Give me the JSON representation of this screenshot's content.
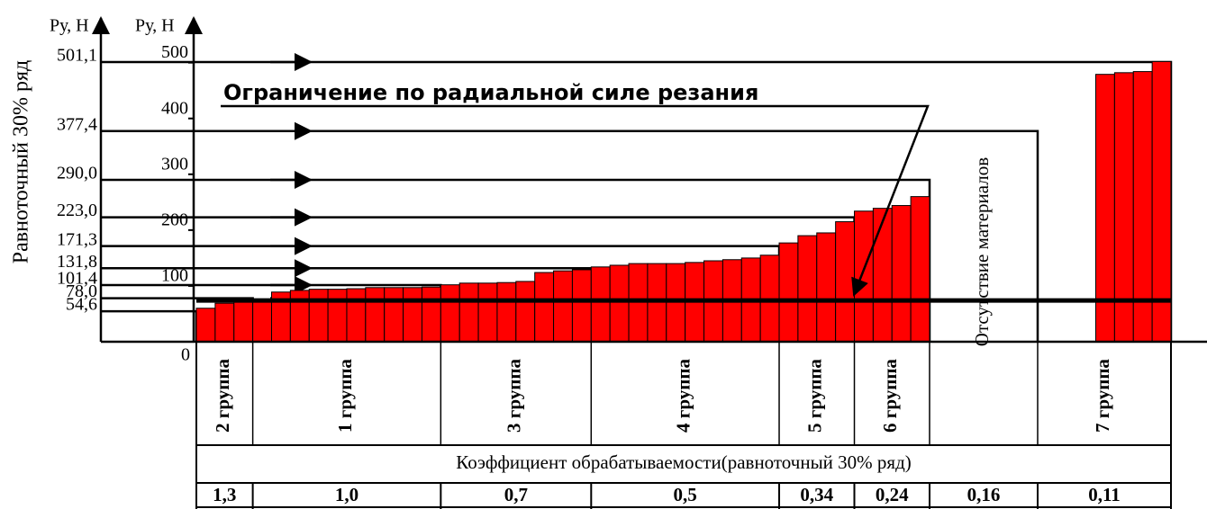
{
  "chart_data": {
    "type": "bar",
    "title": "Ограничение по радиальной силе резания",
    "y_label": "Равноточный 30% ряд",
    "y_unit_outer": "Pу, Н",
    "y_unit_inner": "Pу, Н",
    "color": "#ff0000",
    "ylim": [
      0,
      580
    ],
    "yticks": [
      0,
      100,
      200,
      300,
      400,
      500
    ],
    "row_ticks": [
      {
        "value": 54.6,
        "label": "54,6"
      },
      {
        "value": 78.0,
        "label": "78,0"
      },
      {
        "value": 101.4,
        "label": "101,4"
      },
      {
        "value": 131.8,
        "label": "131,8"
      },
      {
        "value": 171.3,
        "label": "171,3"
      },
      {
        "value": 223.0,
        "label": "223,0"
      },
      {
        "value": 290.0,
        "label": "290,0"
      },
      {
        "value": 377.4,
        "label": "377,4"
      },
      {
        "value": 501.1,
        "label": "501,1"
      }
    ],
    "limit": 74,
    "table_caption": "Коэффициент обрабатываемости(равноточный 30% ряд)",
    "groups": [
      {
        "label": "2 группа",
        "coefficient": "1,3",
        "values": [
          60,
          69,
          73
        ]
      },
      {
        "label": "1 группа",
        "coefficient": "1,0",
        "values": [
          73,
          89,
          92,
          94,
          94,
          95,
          97,
          97,
          97,
          98
        ]
      },
      {
        "label": "3 группа",
        "coefficient": "0,7",
        "values": [
          102,
          105,
          105,
          106,
          108,
          124,
          127,
          129
        ]
      },
      {
        "label": "4 группа",
        "coefficient": "0,5",
        "values": [
          134,
          137,
          140,
          140,
          140,
          142,
          145,
          147,
          150,
          155
        ]
      },
      {
        "label": "5 группа",
        "coefficient": "0,34",
        "values": [
          177,
          190,
          195,
          215
        ]
      },
      {
        "label": "6 группа",
        "coefficient": "0,24",
        "values": [
          234,
          239,
          244,
          260
        ]
      },
      {
        "label": "Отсутствие материалов",
        "coefficient": "0,16",
        "values": []
      },
      {
        "label": "7 группа",
        "coefficient": "0,11",
        "values": [
          479,
          482,
          484,
          502
        ]
      }
    ]
  }
}
